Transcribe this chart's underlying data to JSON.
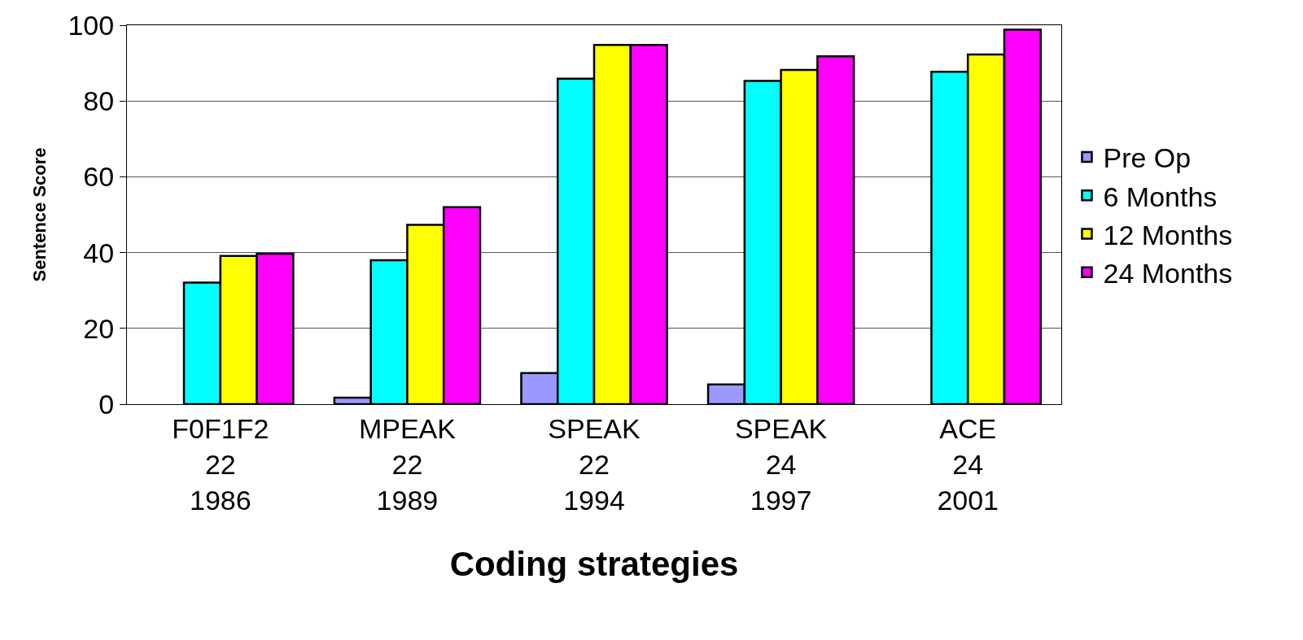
{
  "chart_data": {
    "type": "bar",
    "xlabel": "Coding strategies",
    "ylabel": "Sentence Score",
    "categories": [
      "F0F1F2\n22\n1986",
      "MPEAK\n22\n1989",
      "SPEAK\n22\n1994",
      "SPEAK\n24\n1997",
      "ACE\n24\n2001"
    ],
    "series": [
      {
        "name": "Pre Op",
        "color": "#9999ff",
        "values": [
          null,
          1.7,
          8.2,
          5.2,
          null
        ]
      },
      {
        "name": "6 Months",
        "color": "#00ffff",
        "values": [
          32.1,
          38.0,
          85.9,
          85.3,
          87.7
        ]
      },
      {
        "name": "12 Months",
        "color": "#ffff00",
        "values": [
          39.1,
          47.3,
          94.8,
          88.2,
          92.3
        ]
      },
      {
        "name": "24 Months",
        "color": "#ff00ff",
        "values": [
          39.7,
          52.0,
          94.8,
          91.8,
          98.8
        ]
      }
    ],
    "ylim": [
      0,
      100
    ],
    "yticks": [
      0,
      20,
      40,
      60,
      80,
      100
    ],
    "grid": "y",
    "legend": "right"
  }
}
